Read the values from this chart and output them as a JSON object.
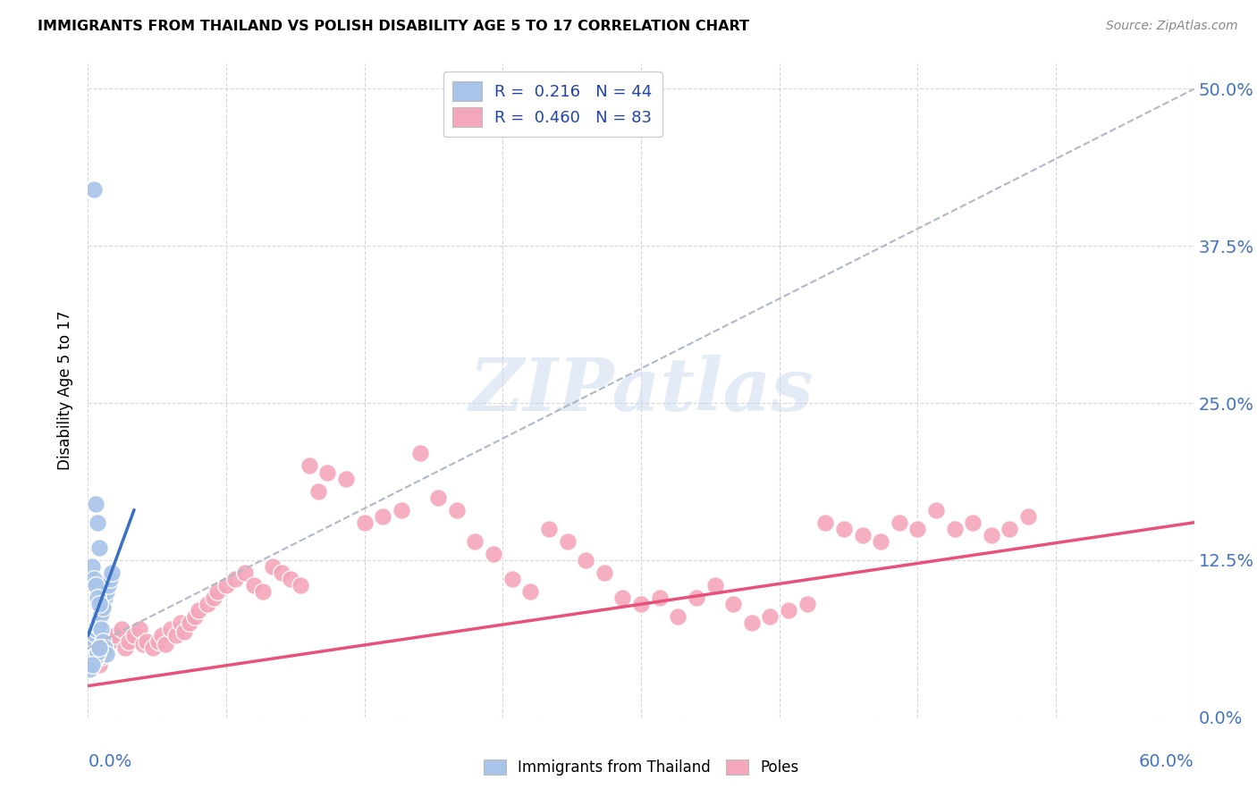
{
  "title": "IMMIGRANTS FROM THAILAND VS POLISH DISABILITY AGE 5 TO 17 CORRELATION CHART",
  "source": "Source: ZipAtlas.com",
  "ylabel": "Disability Age 5 to 17",
  "ytick_labels": [
    "0.0%",
    "12.5%",
    "25.0%",
    "37.5%",
    "50.0%"
  ],
  "ytick_values": [
    0.0,
    0.125,
    0.25,
    0.375,
    0.5
  ],
  "xtick_labels_blue": [
    "0.0%",
    "60.0%"
  ],
  "xlim": [
    0.0,
    0.6
  ],
  "ylim": [
    0.0,
    0.52
  ],
  "legend1_R": "0.216",
  "legend1_N": "44",
  "legend2_R": "0.460",
  "legend2_N": "83",
  "watermark": "ZIPatlas",
  "blue_color": "#a8c4e8",
  "pink_color": "#f4a7bb",
  "blue_line_color": "#3a6fc4",
  "pink_line_color": "#e8527a",
  "dashed_line_color": "#b0b8c8",
  "thailand_x": [
    0.002,
    0.003,
    0.004,
    0.005,
    0.006,
    0.007,
    0.008,
    0.009,
    0.01,
    0.011,
    0.012,
    0.013,
    0.001,
    0.002,
    0.003,
    0.004,
    0.005,
    0.006,
    0.007,
    0.008,
    0.003,
    0.004,
    0.005,
    0.006,
    0.002,
    0.003,
    0.004,
    0.005,
    0.006,
    0.007,
    0.008,
    0.009,
    0.01,
    0.003,
    0.004,
    0.005,
    0.006,
    0.002,
    0.003,
    0.004,
    0.005,
    0.006,
    0.001,
    0.002
  ],
  "thailand_y": [
    0.065,
    0.07,
    0.068,
    0.075,
    0.08,
    0.085,
    0.09,
    0.095,
    0.1,
    0.105,
    0.11,
    0.115,
    0.06,
    0.063,
    0.067,
    0.07,
    0.073,
    0.077,
    0.082,
    0.087,
    0.42,
    0.17,
    0.155,
    0.135,
    0.12,
    0.11,
    0.105,
    0.095,
    0.09,
    0.07,
    0.06,
    0.055,
    0.05,
    0.045,
    0.048,
    0.052,
    0.055,
    0.042,
    0.045,
    0.048,
    0.052,
    0.055,
    0.038,
    0.042
  ],
  "poles_x": [
    0.001,
    0.002,
    0.003,
    0.004,
    0.005,
    0.006,
    0.007,
    0.008,
    0.009,
    0.01,
    0.012,
    0.015,
    0.018,
    0.02,
    0.022,
    0.025,
    0.028,
    0.03,
    0.032,
    0.035,
    0.038,
    0.04,
    0.042,
    0.045,
    0.048,
    0.05,
    0.052,
    0.055,
    0.058,
    0.06,
    0.065,
    0.068,
    0.07,
    0.075,
    0.08,
    0.085,
    0.09,
    0.095,
    0.1,
    0.105,
    0.11,
    0.115,
    0.12,
    0.125,
    0.13,
    0.14,
    0.15,
    0.16,
    0.17,
    0.18,
    0.19,
    0.2,
    0.21,
    0.22,
    0.23,
    0.24,
    0.25,
    0.26,
    0.27,
    0.28,
    0.29,
    0.3,
    0.31,
    0.32,
    0.33,
    0.34,
    0.35,
    0.36,
    0.37,
    0.38,
    0.39,
    0.4,
    0.41,
    0.42,
    0.43,
    0.44,
    0.45,
    0.46,
    0.47,
    0.48,
    0.49,
    0.5,
    0.51
  ],
  "poles_y": [
    0.045,
    0.048,
    0.05,
    0.052,
    0.055,
    0.042,
    0.048,
    0.05,
    0.055,
    0.058,
    0.06,
    0.065,
    0.07,
    0.055,
    0.06,
    0.065,
    0.07,
    0.058,
    0.06,
    0.055,
    0.06,
    0.065,
    0.058,
    0.07,
    0.065,
    0.075,
    0.068,
    0.075,
    0.08,
    0.085,
    0.09,
    0.095,
    0.1,
    0.105,
    0.11,
    0.115,
    0.105,
    0.1,
    0.12,
    0.115,
    0.11,
    0.105,
    0.2,
    0.18,
    0.195,
    0.19,
    0.155,
    0.16,
    0.165,
    0.21,
    0.175,
    0.165,
    0.14,
    0.13,
    0.11,
    0.1,
    0.15,
    0.14,
    0.125,
    0.115,
    0.095,
    0.09,
    0.095,
    0.08,
    0.095,
    0.105,
    0.09,
    0.075,
    0.08,
    0.085,
    0.09,
    0.155,
    0.15,
    0.145,
    0.14,
    0.155,
    0.15,
    0.165,
    0.15,
    0.155,
    0.145,
    0.15,
    0.16
  ],
  "blue_line_x": [
    0.0,
    0.025
  ],
  "blue_line_y": [
    0.065,
    0.165
  ],
  "pink_line_x": [
    0.0,
    0.6
  ],
  "pink_line_y": [
    0.025,
    0.155
  ],
  "dashed_line_x": [
    0.0,
    0.6
  ],
  "dashed_line_y": [
    0.055,
    0.5
  ]
}
